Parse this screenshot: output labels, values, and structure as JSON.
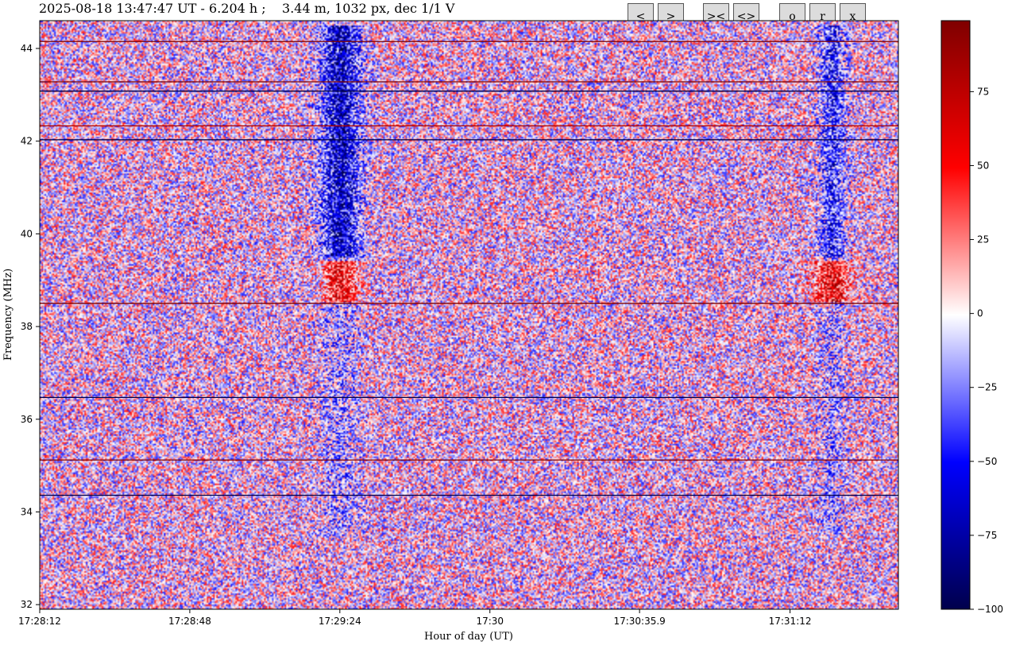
{
  "header": {
    "title": "2025-08-18 13:47:47 UT - 6.204 h ;    3.44 m, 1032 px, dec 1/1 V"
  },
  "toolbar": {
    "buttons": [
      {
        "label": "<"
      },
      {
        "label": ">"
      },
      {
        "label": "><"
      },
      {
        "label": "<>"
      },
      {
        "label": "o"
      },
      {
        "label": "r"
      },
      {
        "label": "x"
      }
    ]
  },
  "chart_data": {
    "type": "heatmap",
    "xlabel": "Hour of day (UT)",
    "ylabel": "Frequency (MHz)",
    "x_ticks": [
      "17:28:12",
      "17:28:48",
      "17:29:24",
      "17:30",
      "17:30:35.9",
      "17:31:12"
    ],
    "x_tick_seconds": [
      0,
      36,
      72,
      108,
      143.9,
      180
    ],
    "x_range_seconds": [
      0,
      206
    ],
    "y_ticks": [
      32,
      34,
      36,
      38,
      40,
      42,
      44
    ],
    "ylim": [
      31.9,
      44.6
    ],
    "colorbar": {
      "ticks": [
        75,
        50,
        25,
        0,
        -25,
        -50,
        -75,
        -100
      ],
      "range": [
        -100,
        99
      ],
      "colormap": "seismic",
      "colors": [
        "#00004c",
        "#0000ff",
        "#ffffff",
        "#ff0000",
        "#7f0000"
      ]
    },
    "features": {
      "burst_times_seconds": [
        72,
        190
      ],
      "burst_freq_range_mhz": [
        33.5,
        44.5
      ],
      "positive_patch_freq_mhz": 39.0,
      "horizontal_lines_mhz": [
        {
          "f": 44.15,
          "v": 99
        },
        {
          "f": 43.28,
          "v": 99
        },
        {
          "f": 43.08,
          "v": -100
        },
        {
          "f": 42.33,
          "v": 80
        },
        {
          "f": 42.03,
          "v": -100
        },
        {
          "f": 38.5,
          "v": 99
        },
        {
          "f": 36.47,
          "v": -100
        },
        {
          "f": 35.12,
          "v": 99
        },
        {
          "f": 34.36,
          "v": -100
        }
      ]
    }
  }
}
